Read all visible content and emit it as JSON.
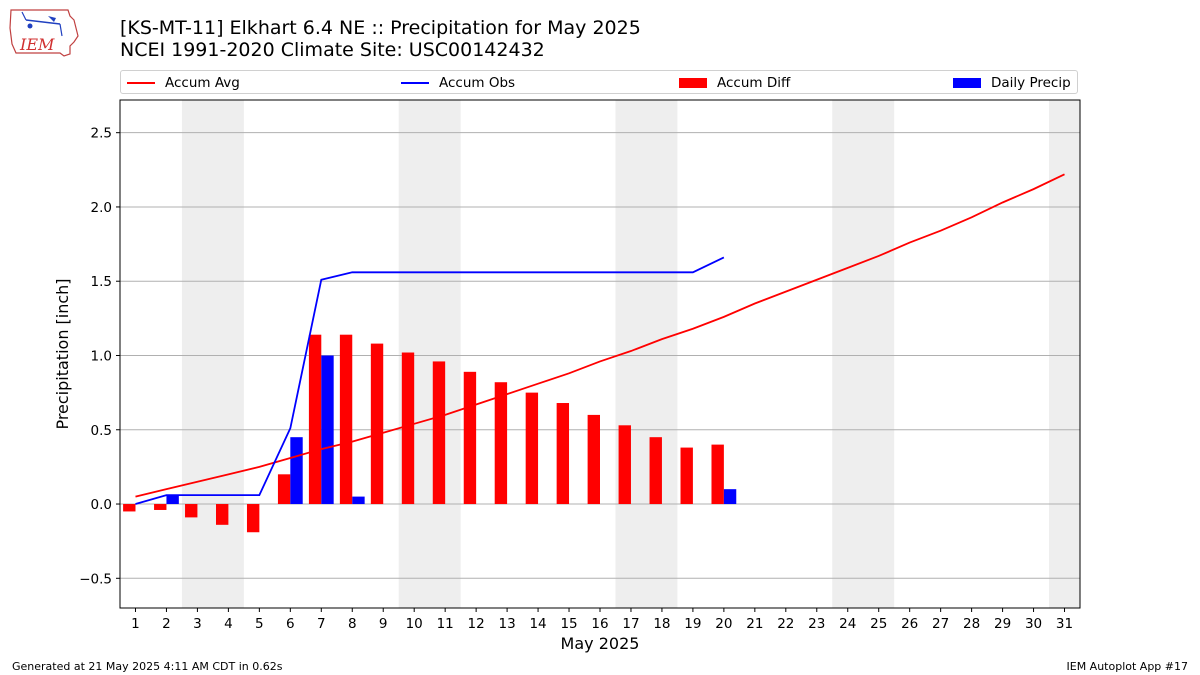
{
  "header": {
    "title_line1": "[KS-MT-11] Elkhart 6.4 NE :: Precipitation for May 2025",
    "title_line2": "NCEI 1991-2020 Climate Site: USC00142432",
    "logo_text": "IEM"
  },
  "footer": {
    "left": "Generated at 21 May 2025 4:11 AM CDT in 0.62s",
    "right": "IEM Autoplot App #17"
  },
  "colors": {
    "avg": "#ff0000",
    "obs": "#0000ff",
    "diff": "#ff0000",
    "daily": "#0000ff",
    "weekend_band": "#eeeeee",
    "grid": "#b0b0b0"
  },
  "chart_data": {
    "type": "bar",
    "xlabel": "May 2025",
    "ylabel": "Precipitation [inch]",
    "ylim": [
      -0.7,
      2.72
    ],
    "xlim": [
      0.5,
      31.5
    ],
    "yticks": [
      "2.5",
      "2.0",
      "1.5",
      "1.0",
      "0.5",
      "0.0",
      "−0.5"
    ],
    "ytick_values": [
      2.5,
      2.0,
      1.5,
      1.0,
      0.5,
      0.0,
      -0.5
    ],
    "days": [
      1,
      2,
      3,
      4,
      5,
      6,
      7,
      8,
      9,
      10,
      11,
      12,
      13,
      14,
      15,
      16,
      17,
      18,
      19,
      20,
      21,
      22,
      23,
      24,
      25,
      26,
      27,
      28,
      29,
      30,
      31
    ],
    "grid": true,
    "legend_position": "top",
    "weekend_bands": [
      [
        3,
        4
      ],
      [
        10,
        11
      ],
      [
        17,
        18
      ],
      [
        24,
        25
      ],
      [
        31,
        31
      ]
    ],
    "series": [
      {
        "name": "Accum Avg",
        "kind": "line",
        "values": [
          0.05,
          0.1,
          0.15,
          0.2,
          0.25,
          0.31,
          0.37,
          0.42,
          0.48,
          0.54,
          0.6,
          0.67,
          0.74,
          0.81,
          0.88,
          0.96,
          1.03,
          1.11,
          1.18,
          1.26,
          1.35,
          1.43,
          1.51,
          1.59,
          1.67,
          1.76,
          1.84,
          1.93,
          2.03,
          2.12,
          2.22
        ]
      },
      {
        "name": "Accum Obs",
        "kind": "line",
        "values": [
          0.0,
          0.06,
          0.06,
          0.06,
          0.06,
          0.51,
          1.51,
          1.56,
          1.56,
          1.56,
          1.56,
          1.56,
          1.56,
          1.56,
          1.56,
          1.56,
          1.56,
          1.56,
          1.56,
          1.66
        ]
      },
      {
        "name": "Accum Diff",
        "kind": "bar",
        "values": [
          -0.05,
          -0.04,
          -0.09,
          -0.14,
          -0.19,
          0.2,
          1.14,
          1.14,
          1.08,
          1.02,
          0.96,
          0.89,
          0.82,
          0.75,
          0.68,
          0.6,
          0.53,
          0.45,
          0.38,
          0.4
        ]
      },
      {
        "name": "Daily Precip",
        "kind": "bar",
        "values": [
          0.0,
          0.06,
          0.0,
          0.0,
          0.0,
          0.45,
          1.0,
          0.05,
          0.0,
          0.0,
          0.0,
          0.0,
          0.0,
          0.0,
          0.0,
          0.0,
          0.0,
          0.0,
          0.0,
          0.1
        ]
      }
    ]
  }
}
